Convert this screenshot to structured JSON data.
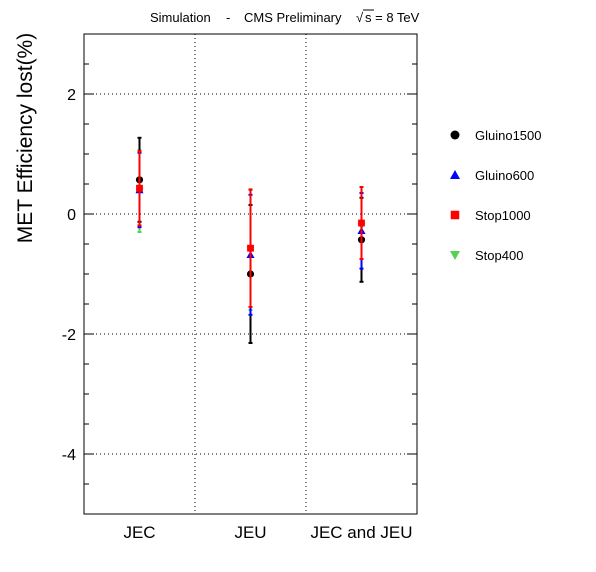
{
  "chart_data": {
    "type": "scatter",
    "title_left": "Simulation",
    "title_sep": "-",
    "title_right": "CMS Preliminary",
    "title_energy_sqrt": "√",
    "title_energy": "s = 8 TeV",
    "ylabel": "MET Efficiency lost(%)",
    "ylim": [
      -5,
      3
    ],
    "yticks": [
      -4,
      -2,
      0,
      2
    ],
    "ytick_labels": [
      "-4",
      "-2",
      "0",
      "2"
    ],
    "categories": [
      "JEC",
      "JEU",
      "JEC and JEU"
    ],
    "grid": true,
    "legend_position": "right",
    "series": [
      {
        "name": "Gluino1500",
        "marker": "circle",
        "color": "#000000",
        "values": [
          0.57,
          -1.0,
          -0.43
        ],
        "err": [
          0.7,
          1.15,
          0.7
        ]
      },
      {
        "name": "Gluino600",
        "marker": "triangle-up",
        "color": "#0000ff",
        "values": [
          0.4,
          -0.68,
          -0.28
        ],
        "err": [
          0.62,
          1.0,
          0.63
        ]
      },
      {
        "name": "Stop1000",
        "marker": "square",
        "color": "#ff0000",
        "values": [
          0.43,
          -0.57,
          -0.15
        ],
        "err": [
          0.62,
          0.98,
          0.6
        ]
      },
      {
        "name": "Stop400",
        "marker": "triangle-down",
        "color": "#55d155",
        "values": [
          0.38,
          -0.6,
          -0.2
        ],
        "err": [
          0.68,
          1.0,
          0.55
        ]
      }
    ]
  }
}
